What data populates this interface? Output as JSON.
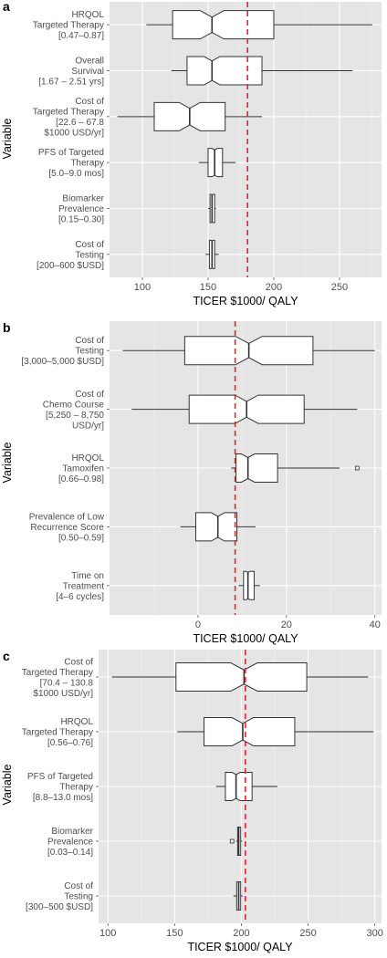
{
  "chart_data": [
    {
      "type": "box",
      "panel_label": "a",
      "xlabel": "TICER $1000/ QALY",
      "ylabel": "Variable",
      "xlim": [
        75,
        282
      ],
      "xticks": [
        100,
        150,
        200,
        250
      ],
      "grid": true,
      "reference_line": 180,
      "categories": [
        {
          "label": [
            "HRQOL",
            "Targeted Therapy",
            "[0.47–0.87]"
          ],
          "min": 103,
          "q1": 123,
          "median": 153,
          "q3": 200,
          "max": 275,
          "notch": [
            144,
            162
          ]
        },
        {
          "label": [
            "Overall",
            "Survival",
            "[1.67 – 2.51 yrs]"
          ],
          "min": 122,
          "q1": 134,
          "median": 153,
          "q3": 191,
          "max": 260,
          "notch": [
            147,
            159
          ]
        },
        {
          "label": [
            "Cost of",
            "Targeted Therapy",
            "[22.6 – 67.8",
            "$1000 USD/yr]"
          ],
          "min": 81,
          "q1": 109,
          "median": 136,
          "q3": 163,
          "max": 191,
          "notch": [
            128,
            144
          ]
        },
        {
          "label": [
            "PFS of Targeted",
            "Therapy",
            "[5.0–9.0 mos]"
          ],
          "min": 143,
          "q1": 150,
          "median": 155,
          "q3": 161,
          "max": 171,
          "notch": [
            153,
            157
          ]
        },
        {
          "label": [
            "Biomarker",
            "Prevalence",
            "[0.15–0.30]"
          ],
          "min": 150,
          "q1": 151.5,
          "median": 153,
          "q3": 155,
          "max": 156,
          "notch": [
            152.4,
            153.6
          ]
        },
        {
          "label": [
            "Cost of",
            "Testing",
            "[200–600 $USD]"
          ],
          "min": 148,
          "q1": 151,
          "median": 153,
          "q3": 155,
          "max": 158,
          "notch": [
            152.3,
            153.7
          ]
        }
      ]
    },
    {
      "type": "box",
      "panel_label": "b",
      "xlabel": "TICER $1000/ QALY",
      "ylabel": "Variable",
      "xlim": [
        -20,
        41.5
      ],
      "xticks": [
        0,
        20,
        40
      ],
      "grid": true,
      "reference_line": 8.4,
      "categories": [
        {
          "label": [
            "Cost of",
            "Testing",
            "[3,000–5,000 $USD]"
          ],
          "min": -17,
          "q1": -3,
          "median": 11.5,
          "q3": 26,
          "max": 40,
          "notch": [
            8.5,
            14.5
          ]
        },
        {
          "label": [
            "Cost of",
            "Chemo Course",
            "[5,250 – 8,750",
            "USD/yr]"
          ],
          "min": -15,
          "q1": -2,
          "median": 11,
          "q3": 24,
          "max": 36,
          "notch": [
            8.4,
            13.6
          ]
        },
        {
          "label": [
            "HRQOL",
            "Tamoxifen",
            "[0.66–0.98]"
          ],
          "min": 7.5,
          "q1": 8.6,
          "median": 11.3,
          "q3": 18,
          "max": 32,
          "notch": [
            9.8,
            12.8
          ],
          "outliers": [
            36
          ]
        },
        {
          "label": [
            "Prevalence of Low",
            "Recurrence Score",
            "[0.50–0.59]"
          ],
          "min": -4,
          "q1": -0.5,
          "median": 4.5,
          "q3": 8.8,
          "max": 13,
          "notch": [
            3,
            6
          ]
        },
        {
          "label": [
            "Time on",
            "Treatment",
            "[4–6 cycles]"
          ],
          "min": 9.2,
          "q1": 10.3,
          "median": 11.3,
          "q3": 12.7,
          "max": 14,
          "notch": [
            10.9,
            11.7
          ]
        }
      ]
    },
    {
      "type": "box",
      "panel_label": "c",
      "xlabel": "TICER $1000/ QALY",
      "ylabel": "Variable",
      "xlim": [
        93,
        305
      ],
      "xticks": [
        100,
        150,
        200,
        250,
        300
      ],
      "grid": true,
      "reference_line": 203,
      "categories": [
        {
          "label": [
            "Cost of",
            "Targeted Therapy",
            "[70.4 – 130.8",
            "$1000 USD/yr]"
          ],
          "min": 103,
          "q1": 151,
          "median": 202,
          "q3": 249,
          "max": 295,
          "notch": [
            192,
            212
          ]
        },
        {
          "label": [
            "HRQOL",
            "Targeted Therapy",
            "[0.56–0.76]"
          ],
          "min": 152,
          "q1": 172,
          "median": 201,
          "q3": 240,
          "max": 299,
          "notch": [
            193,
            209
          ]
        },
        {
          "label": [
            "PFS of Targeted",
            "Therapy",
            "[8.8–13.0 mos]"
          ],
          "min": 181,
          "q1": 188,
          "median": 196,
          "q3": 208,
          "max": 227,
          "notch": [
            193,
            199
          ]
        },
        {
          "label": [
            "Biomarker",
            "Prevalence",
            "[0.03–0.14]"
          ],
          "min": 196,
          "q1": 197.2,
          "median": 198,
          "q3": 199.5,
          "max": 200.5,
          "notch": [
            197.7,
            198.3
          ],
          "outliers": [
            193
          ]
        },
        {
          "label": [
            "Cost of",
            "Testing",
            "[300–500 $USD]"
          ],
          "min": 194,
          "q1": 196.5,
          "median": 198,
          "q3": 199.5,
          "max": 201,
          "notch": [
            197.6,
            198.4
          ]
        }
      ]
    }
  ]
}
